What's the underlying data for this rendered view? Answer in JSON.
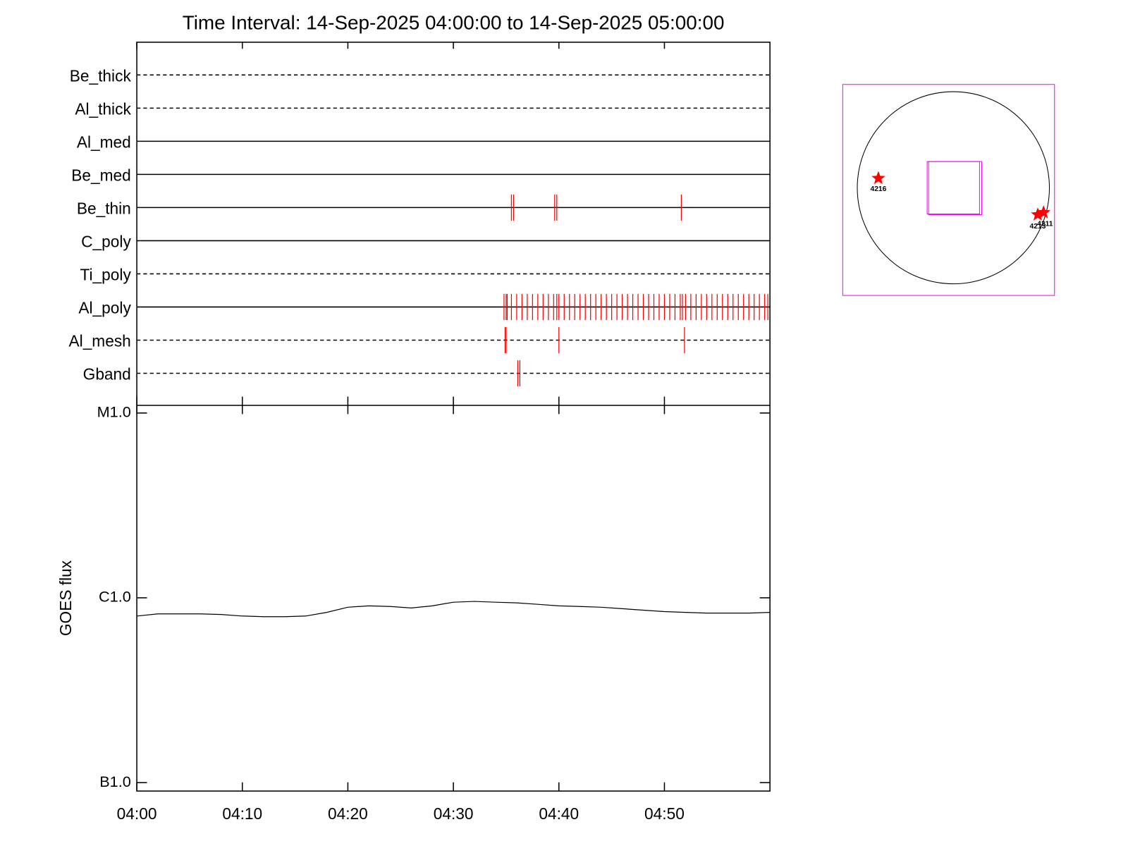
{
  "chart_data": [
    {
      "type": "timeline",
      "title": "Time Interval: 14-Sep-2025 04:00:00 to 14-Sep-2025 05:00:00",
      "event_color": "#ff0000",
      "xlim": [
        0,
        60
      ],
      "xticks": [
        {
          "value": 0,
          "label": "04:00"
        },
        {
          "value": 10,
          "label": "04:10"
        },
        {
          "value": 20,
          "label": "04:20"
        },
        {
          "value": 30,
          "label": "04:30"
        },
        {
          "value": 40,
          "label": "04:40"
        },
        {
          "value": 50,
          "label": "04:50"
        }
      ],
      "series": [
        {
          "name": "Be_thick",
          "style": "dashed",
          "events": []
        },
        {
          "name": "Al_thick",
          "style": "dashed",
          "events": []
        },
        {
          "name": "Al_med",
          "style": "solid",
          "events": []
        },
        {
          "name": "Be_med",
          "style": "solid",
          "events": []
        },
        {
          "name": "Be_thin",
          "style": "solid",
          "events": [
            35.5,
            35.7,
            39.6,
            39.8,
            51.6
          ]
        },
        {
          "name": "C_poly",
          "style": "solid",
          "events": []
        },
        {
          "name": "Ti_poly",
          "style": "dashed",
          "events": []
        },
        {
          "name": "Al_poly",
          "style": "solid",
          "events": [
            34.8,
            35.0,
            35.1,
            35.5,
            36.0,
            36.5,
            37.0,
            37.5,
            38.0,
            38.5,
            39.0,
            39.5,
            39.8,
            40.0,
            40.5,
            41.0,
            41.5,
            42.0,
            42.5,
            43.0,
            43.5,
            44.0,
            44.5,
            45.0,
            45.5,
            46.0,
            46.5,
            47.0,
            47.5,
            48.0,
            48.5,
            49.0,
            49.5,
            50.0,
            50.5,
            51.0,
            51.5,
            51.7,
            52.0,
            52.5,
            53.0,
            53.5,
            54.0,
            54.5,
            55.0,
            55.5,
            56.0,
            56.5,
            57.0,
            57.5,
            58.0,
            58.5,
            59.0,
            59.5,
            59.8
          ]
        },
        {
          "name": "Al_mesh",
          "style": "dashed",
          "events": [
            34.9,
            35.0,
            40.0,
            51.9
          ]
        },
        {
          "name": "Gband",
          "style": "dashed",
          "events": [
            36.1,
            36.3
          ]
        }
      ]
    },
    {
      "type": "line",
      "ylabel": "GOES flux",
      "log_y": true,
      "color": "#000000",
      "xlim": [
        0,
        60
      ],
      "ylim": [
        9e-08,
        1.1e-05
      ],
      "yticks": [
        {
          "value": 1e-07,
          "label": "B1.0"
        },
        {
          "value": 1e-06,
          "label": "C1.0"
        },
        {
          "value": 1e-05,
          "label": "M1.0"
        }
      ],
      "x": [
        0,
        2,
        4,
        6,
        8,
        10,
        12,
        14,
        16,
        18,
        20,
        22,
        24,
        26,
        28,
        30,
        32,
        34,
        36,
        38,
        40,
        42,
        44,
        46,
        48,
        50,
        52,
        54,
        56,
        58,
        60
      ],
      "values": [
        7.97e-07,
        8.19e-07,
        8.19e-07,
        8.19e-07,
        8.12e-07,
        7.97e-07,
        7.9e-07,
        7.9e-07,
        7.97e-07,
        8.34e-07,
        8.89e-07,
        9.05e-07,
        8.97e-07,
        8.81e-07,
        9.05e-07,
        9.47e-07,
        9.56e-07,
        9.47e-07,
        9.39e-07,
        9.22e-07,
        9.05e-07,
        8.97e-07,
        8.89e-07,
        8.73e-07,
        8.57e-07,
        8.42e-07,
        8.34e-07,
        8.26e-07,
        8.26e-07,
        8.26e-07,
        8.34e-07
      ]
    }
  ],
  "map": {
    "markers": [
      {
        "label": "4216"
      },
      {
        "label": "4213"
      },
      {
        "label": "4211"
      }
    ]
  }
}
